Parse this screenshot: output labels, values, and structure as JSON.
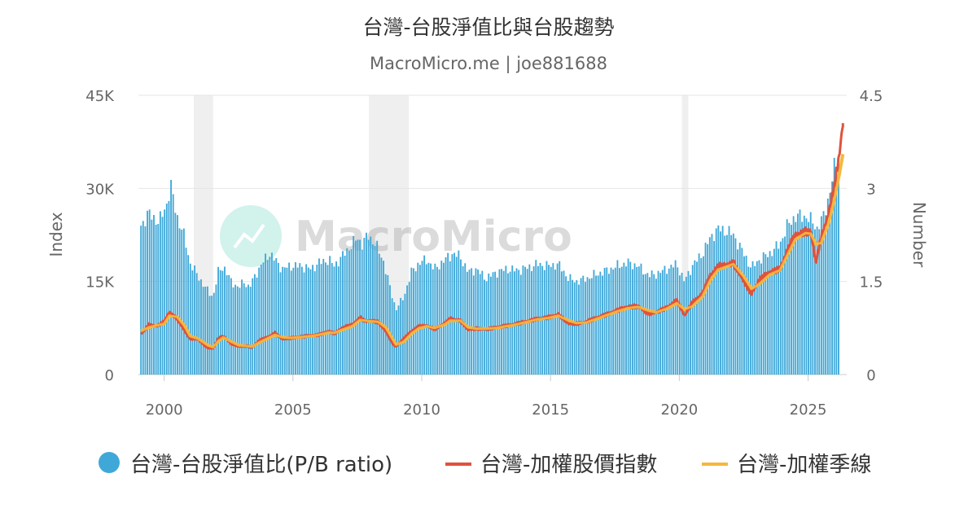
{
  "chart_data": {
    "type": "bar+line",
    "title": "台灣-台股淨值比與台股趨勢",
    "subtitle": "MacroMicro.me | joe881688",
    "watermark": "MacroMicro",
    "y_left": {
      "label": "Index",
      "ticks": [
        "45K",
        "30K",
        "15K",
        "0"
      ],
      "range": [
        0,
        45000
      ]
    },
    "y_right": {
      "label": "Number",
      "ticks": [
        "4.5",
        "3",
        "1.5",
        "0"
      ],
      "range": [
        0,
        4.5
      ]
    },
    "x": {
      "range": [
        1999.0,
        2026.5
      ],
      "ticks": [
        "2000",
        "2005",
        "2010",
        "2015",
        "2020",
        "2025"
      ]
    },
    "recession_bands": [
      [
        2001.15,
        2001.9
      ],
      [
        2007.95,
        2009.5
      ],
      [
        2020.1,
        2020.35
      ]
    ],
    "grid": true,
    "legend_position": "bottom",
    "colors": {
      "pb": "#3fa8d8",
      "index": "#e0523c",
      "ma": "#f5b83e",
      "band": "#efefef",
      "grid": "#e6e6e6"
    },
    "series": [
      {
        "name": "台灣-台股淨值比(P/B ratio)",
        "axis": "right",
        "kind": "bar",
        "anchors": [
          [
            1999.1,
            2.4
          ],
          [
            1999.4,
            2.6
          ],
          [
            1999.8,
            2.45
          ],
          [
            2000.1,
            2.75
          ],
          [
            2000.25,
            3.05
          ],
          [
            2000.5,
            2.55
          ],
          [
            2000.8,
            2.2
          ],
          [
            2001.0,
            1.8
          ],
          [
            2001.3,
            1.6
          ],
          [
            2001.6,
            1.4
          ],
          [
            2001.9,
            1.25
          ],
          [
            2002.1,
            1.65
          ],
          [
            2002.3,
            1.75
          ],
          [
            2002.6,
            1.5
          ],
          [
            2002.9,
            1.4
          ],
          [
            2003.1,
            1.5
          ],
          [
            2003.3,
            1.4
          ],
          [
            2003.6,
            1.65
          ],
          [
            2003.9,
            1.85
          ],
          [
            2004.1,
            1.95
          ],
          [
            2004.3,
            1.85
          ],
          [
            2004.6,
            1.7
          ],
          [
            2004.9,
            1.75
          ],
          [
            2005.3,
            1.75
          ],
          [
            2005.7,
            1.7
          ],
          [
            2006.0,
            1.8
          ],
          [
            2006.4,
            1.85
          ],
          [
            2006.6,
            1.75
          ],
          [
            2006.9,
            1.9
          ],
          [
            2007.2,
            2.05
          ],
          [
            2007.5,
            2.2
          ],
          [
            2007.7,
            2.1
          ],
          [
            2007.9,
            2.25
          ],
          [
            2008.2,
            2.1
          ],
          [
            2008.5,
            1.85
          ],
          [
            2008.8,
            1.35
          ],
          [
            2009.0,
            1.05
          ],
          [
            2009.3,
            1.25
          ],
          [
            2009.6,
            1.65
          ],
          [
            2009.9,
            1.8
          ],
          [
            2010.2,
            1.85
          ],
          [
            2010.5,
            1.7
          ],
          [
            2010.9,
            1.85
          ],
          [
            2011.2,
            1.95
          ],
          [
            2011.5,
            1.9
          ],
          [
            2011.8,
            1.65
          ],
          [
            2012.1,
            1.7
          ],
          [
            2012.5,
            1.55
          ],
          [
            2012.9,
            1.65
          ],
          [
            2013.3,
            1.7
          ],
          [
            2013.7,
            1.68
          ],
          [
            2014.1,
            1.72
          ],
          [
            2014.5,
            1.78
          ],
          [
            2014.9,
            1.75
          ],
          [
            2015.3,
            1.78
          ],
          [
            2015.7,
            1.55
          ],
          [
            2016.0,
            1.5
          ],
          [
            2016.4,
            1.55
          ],
          [
            2016.8,
            1.62
          ],
          [
            2017.2,
            1.68
          ],
          [
            2017.6,
            1.75
          ],
          [
            2018.0,
            1.8
          ],
          [
            2018.4,
            1.75
          ],
          [
            2018.8,
            1.6
          ],
          [
            2019.1,
            1.62
          ],
          [
            2019.5,
            1.7
          ],
          [
            2019.9,
            1.78
          ],
          [
            2020.2,
            1.5
          ],
          [
            2020.5,
            1.75
          ],
          [
            2020.9,
            1.95
          ],
          [
            2021.2,
            2.2
          ],
          [
            2021.5,
            2.35
          ],
          [
            2021.9,
            2.3
          ],
          [
            2022.1,
            2.25
          ],
          [
            2022.5,
            1.95
          ],
          [
            2022.8,
            1.72
          ],
          [
            2023.1,
            1.85
          ],
          [
            2023.5,
            1.95
          ],
          [
            2023.9,
            2.1
          ],
          [
            2024.2,
            2.4
          ],
          [
            2024.5,
            2.55
          ],
          [
            2024.9,
            2.55
          ],
          [
            2025.2,
            2.45
          ],
          [
            2025.35,
            2.35
          ],
          [
            2025.6,
            2.55
          ],
          [
            2025.85,
            2.95
          ],
          [
            2026.0,
            3.3
          ],
          [
            2026.2,
            3.5
          ]
        ]
      },
      {
        "name": "台灣-加權股價指數",
        "axis": "left",
        "kind": "line",
        "anchors": [
          [
            1999.1,
            6500
          ],
          [
            1999.4,
            8000
          ],
          [
            1999.7,
            7800
          ],
          [
            2000.0,
            8500
          ],
          [
            2000.2,
            10100
          ],
          [
            2000.5,
            9000
          ],
          [
            2000.8,
            7000
          ],
          [
            2001.0,
            5800
          ],
          [
            2001.3,
            5700
          ],
          [
            2001.7,
            4300
          ],
          [
            2001.9,
            4200
          ],
          [
            2002.1,
            5800
          ],
          [
            2002.3,
            6200
          ],
          [
            2002.6,
            5000
          ],
          [
            2002.9,
            4500
          ],
          [
            2003.2,
            4600
          ],
          [
            2003.4,
            4400
          ],
          [
            2003.7,
            5500
          ],
          [
            2004.0,
            6000
          ],
          [
            2004.3,
            6700
          ],
          [
            2004.6,
            5700
          ],
          [
            2004.9,
            5900
          ],
          [
            2005.3,
            6100
          ],
          [
            2005.7,
            6300
          ],
          [
            2006.0,
            6400
          ],
          [
            2006.4,
            7000
          ],
          [
            2006.6,
            6600
          ],
          [
            2006.9,
            7500
          ],
          [
            2007.3,
            8000
          ],
          [
            2007.6,
            9200
          ],
          [
            2007.8,
            8600
          ],
          [
            2008.0,
            8700
          ],
          [
            2008.3,
            8500
          ],
          [
            2008.6,
            7000
          ],
          [
            2008.9,
            4800
          ],
          [
            2009.0,
            4500
          ],
          [
            2009.3,
            5800
          ],
          [
            2009.6,
            7000
          ],
          [
            2009.9,
            7800
          ],
          [
            2010.2,
            7900
          ],
          [
            2010.5,
            7300
          ],
          [
            2010.9,
            8300
          ],
          [
            2011.1,
            9000
          ],
          [
            2011.5,
            8700
          ],
          [
            2011.8,
            7200
          ],
          [
            2012.1,
            7400
          ],
          [
            2012.5,
            7300
          ],
          [
            2012.9,
            7600
          ],
          [
            2013.3,
            7900
          ],
          [
            2013.7,
            8200
          ],
          [
            2014.1,
            8600
          ],
          [
            2014.5,
            9000
          ],
          [
            2014.9,
            9200
          ],
          [
            2015.3,
            9700
          ],
          [
            2015.7,
            8200
          ],
          [
            2016.0,
            8200
          ],
          [
            2016.4,
            8500
          ],
          [
            2016.8,
            9200
          ],
          [
            2017.2,
            9700
          ],
          [
            2017.6,
            10400
          ],
          [
            2018.0,
            10900
          ],
          [
            2018.4,
            11000
          ],
          [
            2018.8,
            9800
          ],
          [
            2019.1,
            10000
          ],
          [
            2019.5,
            10800
          ],
          [
            2019.9,
            11900
          ],
          [
            2020.2,
            9500
          ],
          [
            2020.5,
            11600
          ],
          [
            2020.9,
            13000
          ],
          [
            2021.2,
            16000
          ],
          [
            2021.5,
            17400
          ],
          [
            2021.9,
            17800
          ],
          [
            2022.1,
            18000
          ],
          [
            2022.5,
            15000
          ],
          [
            2022.8,
            13000
          ],
          [
            2023.1,
            15200
          ],
          [
            2023.5,
            16500
          ],
          [
            2023.9,
            17000
          ],
          [
            2024.2,
            20000
          ],
          [
            2024.5,
            22500
          ],
          [
            2024.9,
            23000
          ],
          [
            2025.1,
            23000
          ],
          [
            2025.3,
            18000
          ],
          [
            2025.5,
            22000
          ],
          [
            2025.8,
            26000
          ],
          [
            2026.0,
            30000
          ],
          [
            2026.2,
            35000
          ],
          [
            2026.35,
            40500
          ]
        ]
      },
      {
        "name": "台灣-加權季線",
        "axis": "left",
        "kind": "line",
        "anchors": [
          [
            1999.1,
            7000
          ],
          [
            1999.4,
            7600
          ],
          [
            1999.7,
            7900
          ],
          [
            2000.0,
            8200
          ],
          [
            2000.2,
            9500
          ],
          [
            2000.5,
            9300
          ],
          [
            2000.8,
            7800
          ],
          [
            2001.0,
            6200
          ],
          [
            2001.3,
            5800
          ],
          [
            2001.7,
            4700
          ],
          [
            2001.9,
            4400
          ],
          [
            2002.1,
            5400
          ],
          [
            2002.3,
            6000
          ],
          [
            2002.6,
            5300
          ],
          [
            2002.9,
            4700
          ],
          [
            2003.2,
            4600
          ],
          [
            2003.4,
            4500
          ],
          [
            2003.7,
            5200
          ],
          [
            2004.0,
            5800
          ],
          [
            2004.3,
            6400
          ],
          [
            2004.6,
            6000
          ],
          [
            2004.9,
            5900
          ],
          [
            2005.3,
            6050
          ],
          [
            2005.7,
            6200
          ],
          [
            2006.0,
            6400
          ],
          [
            2006.4,
            6800
          ],
          [
            2006.6,
            6700
          ],
          [
            2006.9,
            7200
          ],
          [
            2007.3,
            7800
          ],
          [
            2007.6,
            8800
          ],
          [
            2007.8,
            8700
          ],
          [
            2008.0,
            8600
          ],
          [
            2008.3,
            8500
          ],
          [
            2008.6,
            7600
          ],
          [
            2008.9,
            5500
          ],
          [
            2009.0,
            4800
          ],
          [
            2009.3,
            5300
          ],
          [
            2009.6,
            6600
          ],
          [
            2009.9,
            7500
          ],
          [
            2010.2,
            7800
          ],
          [
            2010.5,
            7500
          ],
          [
            2010.9,
            8100
          ],
          [
            2011.1,
            8700
          ],
          [
            2011.5,
            8700
          ],
          [
            2011.8,
            7600
          ],
          [
            2012.1,
            7400
          ],
          [
            2012.5,
            7400
          ],
          [
            2012.9,
            7500
          ],
          [
            2013.3,
            7800
          ],
          [
            2013.7,
            8100
          ],
          [
            2014.1,
            8500
          ],
          [
            2014.5,
            8900
          ],
          [
            2014.9,
            9100
          ],
          [
            2015.3,
            9500
          ],
          [
            2015.7,
            8700
          ],
          [
            2016.0,
            8300
          ],
          [
            2016.4,
            8400
          ],
          [
            2016.8,
            9000
          ],
          [
            2017.2,
            9600
          ],
          [
            2017.6,
            10200
          ],
          [
            2018.0,
            10700
          ],
          [
            2018.4,
            10900
          ],
          [
            2018.8,
            10300
          ],
          [
            2019.1,
            10000
          ],
          [
            2019.5,
            10600
          ],
          [
            2019.9,
            11500
          ],
          [
            2020.2,
            10500
          ],
          [
            2020.5,
            11000
          ],
          [
            2020.9,
            12600
          ],
          [
            2021.2,
            15200
          ],
          [
            2021.5,
            16900
          ],
          [
            2021.9,
            17500
          ],
          [
            2022.1,
            17800
          ],
          [
            2022.5,
            15800
          ],
          [
            2022.8,
            13800
          ],
          [
            2023.1,
            14600
          ],
          [
            2023.5,
            16100
          ],
          [
            2023.9,
            16800
          ],
          [
            2024.2,
            19300
          ],
          [
            2024.5,
            21800
          ],
          [
            2024.9,
            22800
          ],
          [
            2025.1,
            22700
          ],
          [
            2025.3,
            21000
          ],
          [
            2025.5,
            21200
          ],
          [
            2025.8,
            24500
          ],
          [
            2026.0,
            28000
          ],
          [
            2026.2,
            32000
          ],
          [
            2026.35,
            35500
          ]
        ]
      }
    ]
  }
}
